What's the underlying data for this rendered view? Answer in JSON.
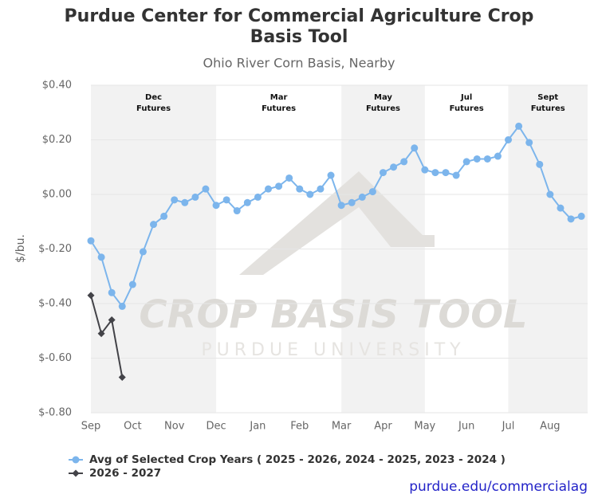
{
  "chart_data": {
    "type": "line",
    "title": "Purdue Center for Commercial Agriculture Crop Basis Tool",
    "subtitle": "Ohio River Corn Basis, Nearby",
    "y_label": "$/bu.",
    "credit": "purdue.edu/commercialag",
    "watermark": {
      "title": "CROP BASIS TOOL",
      "subtitle": "PURDUE UNIVERSITY"
    },
    "x": [
      0,
      1,
      2,
      3,
      4,
      5,
      6,
      7,
      8,
      9,
      10,
      11,
      12,
      13,
      14,
      15,
      16,
      17,
      18,
      19,
      20,
      21,
      22,
      23,
      24,
      25,
      26,
      27,
      28,
      29,
      30,
      31,
      32,
      33,
      34,
      35,
      36,
      37,
      38,
      39,
      40,
      41,
      42,
      43,
      44,
      45,
      46,
      47
    ],
    "xlim": [
      0,
      47.6
    ],
    "xticks": [
      {
        "value": 0,
        "label": "Sep"
      },
      {
        "value": 4,
        "label": "Oct"
      },
      {
        "value": 8,
        "label": "Nov"
      },
      {
        "value": 12,
        "label": "Dec"
      },
      {
        "value": 16,
        "label": "Jan"
      },
      {
        "value": 20,
        "label": "Feb"
      },
      {
        "value": 24,
        "label": "Mar"
      },
      {
        "value": 28,
        "label": "Apr"
      },
      {
        "value": 32,
        "label": "May"
      },
      {
        "value": 36,
        "label": "Jun"
      },
      {
        "value": 40,
        "label": "Jul"
      },
      {
        "value": 44,
        "label": "Aug"
      }
    ],
    "ylim": [
      -0.8,
      0.4
    ],
    "yticks": [
      {
        "value": 0.4,
        "label": "$0.40"
      },
      {
        "value": 0.2,
        "label": "$0.20"
      },
      {
        "value": 0,
        "label": "$0.00"
      },
      {
        "value": -0.2,
        "label": "$-0.20"
      },
      {
        "value": -0.4,
        "label": "$-0.40"
      },
      {
        "value": -0.6,
        "label": "$-0.60"
      },
      {
        "value": -0.8,
        "label": "$-0.80"
      }
    ],
    "grid": true,
    "bands": [
      {
        "label": [
          "Dec",
          "Futures"
        ],
        "from": 0,
        "to": 12,
        "shaded": true
      },
      {
        "label": [
          "Mar",
          "Futures"
        ],
        "from": 12,
        "to": 24,
        "shaded": false
      },
      {
        "label": [
          "May",
          "Futures"
        ],
        "from": 24,
        "to": 32,
        "shaded": true
      },
      {
        "label": [
          "Jul",
          "Futures"
        ],
        "from": 32,
        "to": 40,
        "shaded": false
      },
      {
        "label": [
          "Sept",
          "Futures"
        ],
        "from": 40,
        "to": 47.6,
        "shaded": true
      }
    ],
    "legend": "bottom",
    "series": [
      {
        "name": "Avg of Selected Crop Years ( 2025 - 2026, 2024 - 2025, 2023 - 2024 )",
        "color": "#7cb5ec",
        "marker": "circle",
        "values": [
          -0.17,
          -0.23,
          -0.36,
          -0.41,
          -0.33,
          -0.21,
          -0.11,
          -0.08,
          -0.02,
          -0.03,
          -0.01,
          0.02,
          -0.04,
          -0.02,
          -0.06,
          -0.03,
          -0.01,
          0.02,
          0.03,
          0.06,
          0.02,
          0.0,
          0.02,
          0.07,
          -0.04,
          -0.03,
          -0.01,
          0.01,
          0.08,
          0.1,
          0.12,
          0.17,
          0.09,
          0.08,
          0.08,
          0.07,
          0.12,
          0.13,
          0.13,
          0.14,
          0.2,
          0.25,
          0.19,
          0.11,
          0.0,
          -0.05,
          -0.09,
          -0.08
        ]
      },
      {
        "name": "2026 - 2027",
        "color": "#434348",
        "marker": "diamond",
        "values": [
          -0.37,
          -0.51,
          -0.46,
          -0.67,
          null,
          null,
          null,
          null,
          null,
          null,
          null,
          null,
          null,
          null,
          null,
          null,
          null,
          null,
          null,
          null,
          null,
          null,
          null,
          null,
          null,
          null,
          null,
          null,
          null,
          null,
          null,
          null,
          null,
          null,
          null,
          null,
          null,
          null,
          null,
          null,
          null,
          null,
          null,
          null,
          null,
          null,
          null,
          null
        ]
      }
    ]
  }
}
